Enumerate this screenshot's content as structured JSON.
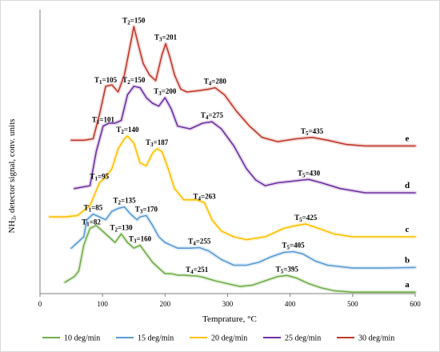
{
  "chart_data": {
    "type": "line",
    "xlabel": "Temprature, °C",
    "ylabel": "NH3, detector signal, conv. units",
    "xlim": [
      0,
      600
    ],
    "xticks": [
      "0",
      "100",
      "200",
      "300",
      "400",
      "500",
      "600"
    ],
    "ylim": [
      0,
      100
    ],
    "grid": false,
    "legend_position": "bottom",
    "series": [
      {
        "name": "10 deg/min",
        "color": "#70ad47",
        "letter": "a",
        "x": [
          40,
          55,
          62,
          70,
          80,
          90,
          100,
          110,
          120,
          130,
          140,
          150,
          160,
          170,
          180,
          190,
          200,
          210,
          220,
          230,
          240,
          251,
          260,
          280,
          300,
          320,
          340,
          360,
          380,
          395,
          410,
          430,
          450,
          470,
          500,
          550,
          600
        ],
        "y": [
          4,
          6,
          8,
          17,
          23,
          24,
          22,
          20,
          18,
          21,
          18,
          16,
          17,
          14,
          11,
          9,
          7,
          7,
          6.5,
          6.5,
          6.3,
          6.2,
          5.8,
          4.5,
          3.5,
          2.5,
          3,
          4.5,
          6,
          6.4,
          5.5,
          3.5,
          2,
          1,
          0.5,
          0.5,
          0.5
        ]
      },
      {
        "name": "15 deg/min",
        "color": "#5b9bd5",
        "letter": "b",
        "x": [
          50,
          60,
          70,
          75,
          85,
          95,
          105,
          115,
          125,
          135,
          145,
          155,
          160,
          170,
          180,
          190,
          200,
          220,
          240,
          255,
          270,
          290,
          310,
          330,
          350,
          370,
          390,
          405,
          420,
          440,
          460,
          500,
          550,
          600
        ],
        "y": [
          16,
          18,
          20,
          26,
          28,
          27,
          26,
          29,
          30,
          30.5,
          28,
          26,
          27,
          27.5,
          24,
          20,
          18,
          16,
          16,
          16.2,
          15,
          12,
          10,
          10,
          11,
          13,
          14.5,
          14.8,
          14,
          11.5,
          10,
          9,
          9,
          9.2
        ]
      },
      {
        "name": "20 deg/min",
        "color": "#ffc000",
        "letter": "c",
        "x": [
          15,
          40,
          60,
          80,
          95,
          105,
          115,
          125,
          135,
          140,
          150,
          160,
          170,
          180,
          187,
          195,
          205,
          215,
          230,
          250,
          263,
          275,
          290,
          310,
          330,
          360,
          390,
          410,
          425,
          445,
          470,
          500,
          550,
          600
        ],
        "y": [
          27,
          27,
          27.5,
          31,
          39,
          41,
          44,
          51,
          54.5,
          55.5,
          53,
          46,
          45,
          49.5,
          51,
          50,
          44,
          37,
          33,
          33,
          32,
          26,
          22,
          20,
          19,
          20,
          23,
          24,
          24.5,
          23,
          21,
          20,
          20,
          20
        ]
      },
      {
        "name": "25 deg/min",
        "color": "#7030a0",
        "letter": "d",
        "x": [
          55,
          80,
          90,
          101,
          110,
          120,
          130,
          140,
          150,
          160,
          170,
          180,
          190,
          200,
          210,
          220,
          240,
          260,
          275,
          290,
          310,
          330,
          345,
          360,
          380,
          400,
          420,
          430,
          450,
          480,
          520,
          560,
          600
        ],
        "y": [
          37,
          38,
          50,
          59,
          60,
          60,
          61,
          70,
          73,
          72.5,
          69,
          67,
          66,
          69,
          65,
          59,
          58,
          60,
          60.5,
          58,
          52,
          44,
          40,
          38,
          39,
          39.5,
          40,
          40.2,
          39,
          37,
          35.5,
          35.5,
          35.5
        ]
      },
      {
        "name": "30 deg/min",
        "color": "#c0392b",
        "letter": "e",
        "x": [
          50,
          70,
          85,
          95,
          105,
          115,
          125,
          135,
          143,
          150,
          158,
          165,
          175,
          185,
          195,
          201,
          208,
          215,
          225,
          235,
          255,
          270,
          280,
          295,
          315,
          335,
          355,
          380,
          410,
          435,
          460,
          490,
          520,
          560,
          600
        ],
        "y": [
          54,
          54,
          54.5,
          63,
          73,
          73.5,
          71,
          77,
          86,
          94,
          87,
          81,
          77,
          75,
          84,
          88,
          83,
          77,
          72,
          71,
          71.5,
          72,
          72.5,
          70,
          64,
          59,
          55,
          53.5,
          54.5,
          55,
          54,
          52.5,
          52,
          52,
          52
        ]
      }
    ],
    "annotations": [
      {
        "series": "10 deg/min",
        "label": "T1=82",
        "x": 82,
        "y": 23
      },
      {
        "series": "10 deg/min",
        "label": "T2=130",
        "x": 130,
        "y": 21
      },
      {
        "series": "10 deg/min",
        "label": "T3=160",
        "x": 160,
        "y": 17
      },
      {
        "series": "10 deg/min",
        "label": "T4=251",
        "x": 251,
        "y": 6.2
      },
      {
        "series": "10 deg/min",
        "label": "T5=395",
        "x": 395,
        "y": 6.4
      },
      {
        "series": "15 deg/min",
        "label": "T1=85",
        "x": 85,
        "y": 28
      },
      {
        "series": "15 deg/min",
        "label": "T2=135",
        "x": 135,
        "y": 30.5
      },
      {
        "series": "15 deg/min",
        "label": "T3=170",
        "x": 170,
        "y": 27.5
      },
      {
        "series": "15 deg/min",
        "label": "T4=255",
        "x": 255,
        "y": 16.2
      },
      {
        "series": "15 deg/min",
        "label": "T5=405",
        "x": 405,
        "y": 14.8
      },
      {
        "series": "20 deg/min",
        "label": "T1=95",
        "x": 95,
        "y": 39
      },
      {
        "series": "20 deg/min",
        "label": "T2=140",
        "x": 140,
        "y": 55.5
      },
      {
        "series": "20 deg/min",
        "label": "T3=187",
        "x": 187,
        "y": 51
      },
      {
        "series": "20 deg/min",
        "label": "T4=263",
        "x": 263,
        "y": 32
      },
      {
        "series": "20 deg/min",
        "label": "T5=425",
        "x": 425,
        "y": 24.5
      },
      {
        "series": "25 deg/min",
        "label": "T1=101",
        "x": 101,
        "y": 59
      },
      {
        "series": "25 deg/min",
        "label": "T2=150",
        "x": 150,
        "y": 73
      },
      {
        "series": "25 deg/min",
        "label": "T3=200",
        "x": 200,
        "y": 69
      },
      {
        "series": "25 deg/min",
        "label": "T4=275",
        "x": 275,
        "y": 60.5
      },
      {
        "series": "25 deg/min",
        "label": "T5=430",
        "x": 430,
        "y": 40.2
      },
      {
        "series": "30 deg/min",
        "label": "T1=105",
        "x": 105,
        "y": 73
      },
      {
        "series": "30 deg/min",
        "label": "T2=150",
        "x": 150,
        "y": 94
      },
      {
        "series": "30 deg/min",
        "label": "T3=201",
        "x": 201,
        "y": 88
      },
      {
        "series": "30 deg/min",
        "label": "T4=280",
        "x": 280,
        "y": 72.5
      },
      {
        "series": "30 deg/min",
        "label": "T5=435",
        "x": 435,
        "y": 55
      }
    ]
  }
}
